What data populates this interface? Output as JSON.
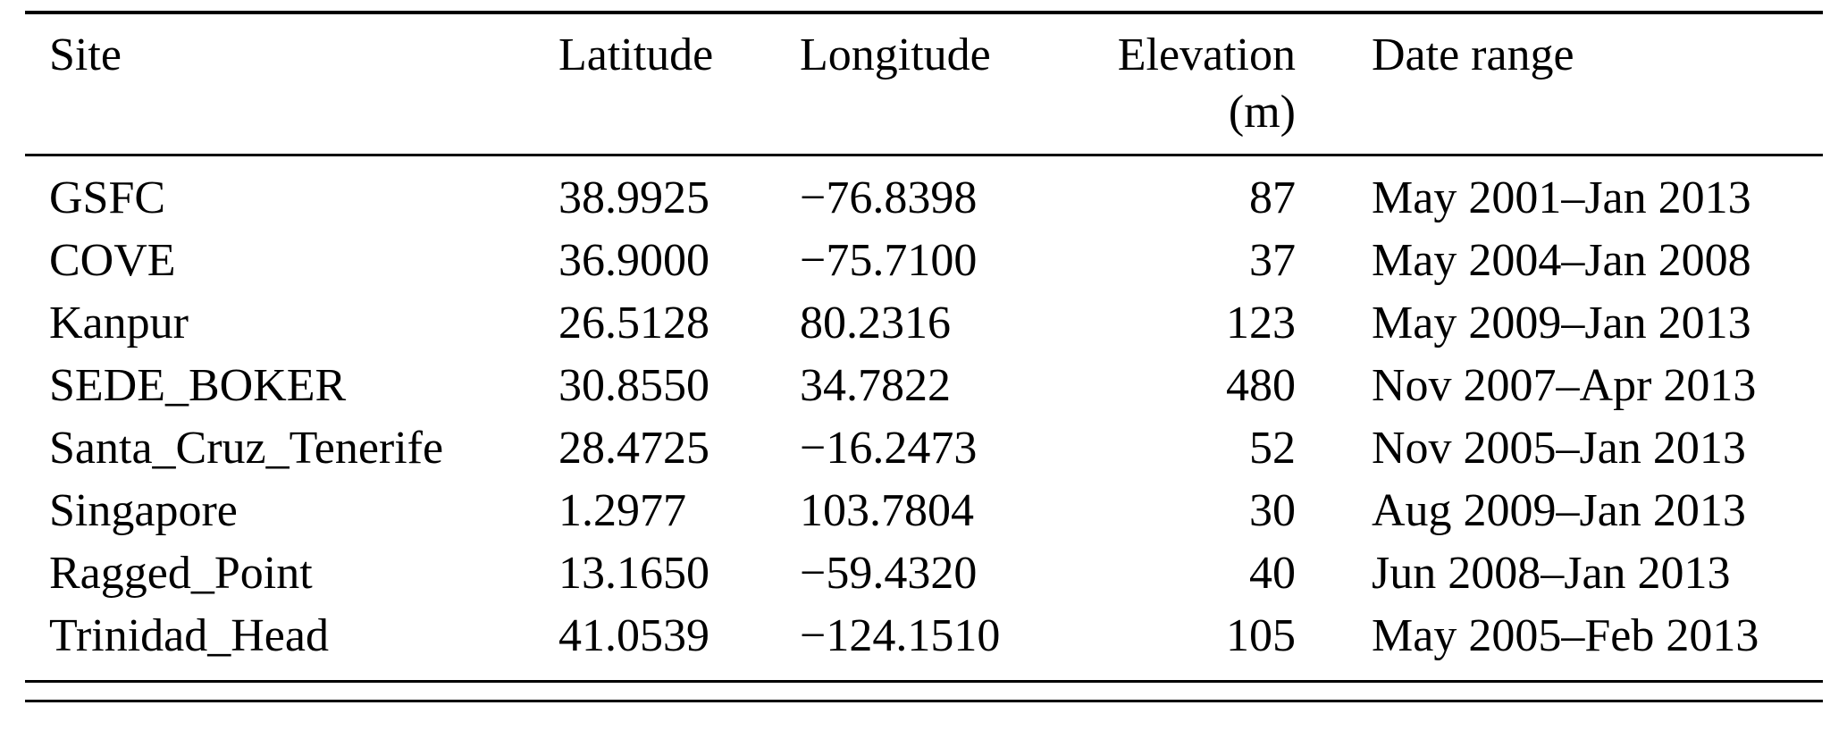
{
  "page": {
    "background": "#ffffff",
    "text_color": "#000000"
  },
  "table": {
    "header": {
      "site": "Site",
      "latitude": "Latitude",
      "longitude": "Longitude",
      "elevation_line1": "Elevation",
      "elevation_line2": "(m)",
      "date_range": "Date range"
    },
    "rows": [
      {
        "site": "GSFC",
        "latitude": "38.9925",
        "longitude": "−76.8398",
        "elevation": "87",
        "date_range": "May 2001–Jan 2013"
      },
      {
        "site": "COVE",
        "latitude": "36.9000",
        "longitude": "−75.7100",
        "elevation": "37",
        "date_range": "May 2004–Jan 2008"
      },
      {
        "site": "Kanpur",
        "latitude": "26.5128",
        "longitude": "80.2316",
        "elevation": "123",
        "date_range": "May 2009–Jan 2013"
      },
      {
        "site": "SEDE_BOKER",
        "latitude": "30.8550",
        "longitude": "34.7822",
        "elevation": "480",
        "date_range": "Nov 2007–Apr 2013"
      },
      {
        "site": "Santa_Cruz_Tenerife",
        "latitude": "28.4725",
        "longitude": "−16.2473",
        "elevation": "52",
        "date_range": "Nov 2005–Jan 2013"
      },
      {
        "site": "Singapore",
        "latitude": "1.2977",
        "longitude": "103.7804",
        "elevation": "30",
        "date_range": "Aug 2009–Jan 2013"
      },
      {
        "site": "Ragged_Point",
        "latitude": "13.1650",
        "longitude": "−59.4320",
        "elevation": "40",
        "date_range": "Jun 2008–Jan 2013"
      },
      {
        "site": "Trinidad_Head",
        "latitude": "41.0539",
        "longitude": "−124.1510",
        "elevation": "105",
        "date_range": "May 2005–Feb 2013"
      }
    ]
  }
}
